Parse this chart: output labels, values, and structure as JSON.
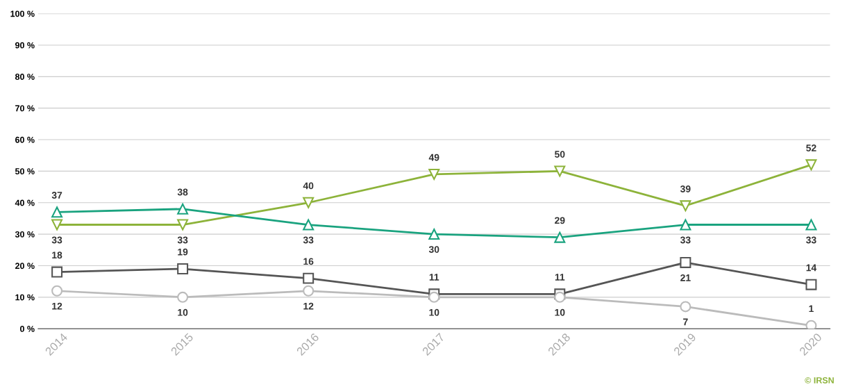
{
  "chart_data": {
    "type": "line",
    "categories": [
      "2014",
      "2015",
      "2016",
      "2017",
      "2018",
      "2019",
      "2020"
    ],
    "series": [
      {
        "color": "#8db33a",
        "marker": "triangle_down",
        "values": [
          33,
          33,
          40,
          49,
          50,
          39,
          52
        ]
      },
      {
        "color": "#1aa37f",
        "marker": "triangle",
        "values": [
          37,
          38,
          33,
          30,
          29,
          33,
          33
        ]
      },
      {
        "color": "#555555",
        "marker": "square",
        "values": [
          18,
          19,
          16,
          11,
          11,
          21,
          14
        ]
      },
      {
        "color": "#bbbbbb",
        "marker": "circle",
        "values": [
          12,
          10,
          12,
          10,
          10,
          7,
          1
        ]
      }
    ],
    "ylim": [
      0,
      100
    ],
    "yticks": [
      {
        "value": 0,
        "label": "0 %"
      },
      {
        "value": 10,
        "label": "10 %"
      },
      {
        "value": 20,
        "label": "20 %"
      },
      {
        "value": 30,
        "label": "30 %"
      },
      {
        "value": 40,
        "label": "40 %"
      },
      {
        "value": 50,
        "label": "50 %"
      },
      {
        "value": 60,
        "label": "60 %"
      },
      {
        "value": 70,
        "label": "70 %"
      },
      {
        "value": 80,
        "label": "80 %"
      },
      {
        "value": 90,
        "label": "90 %"
      },
      {
        "value": 100,
        "label": "100 %"
      }
    ],
    "grid": "y",
    "legend": false,
    "data_labels": true,
    "annotations": [
      "© IRSN"
    ]
  }
}
